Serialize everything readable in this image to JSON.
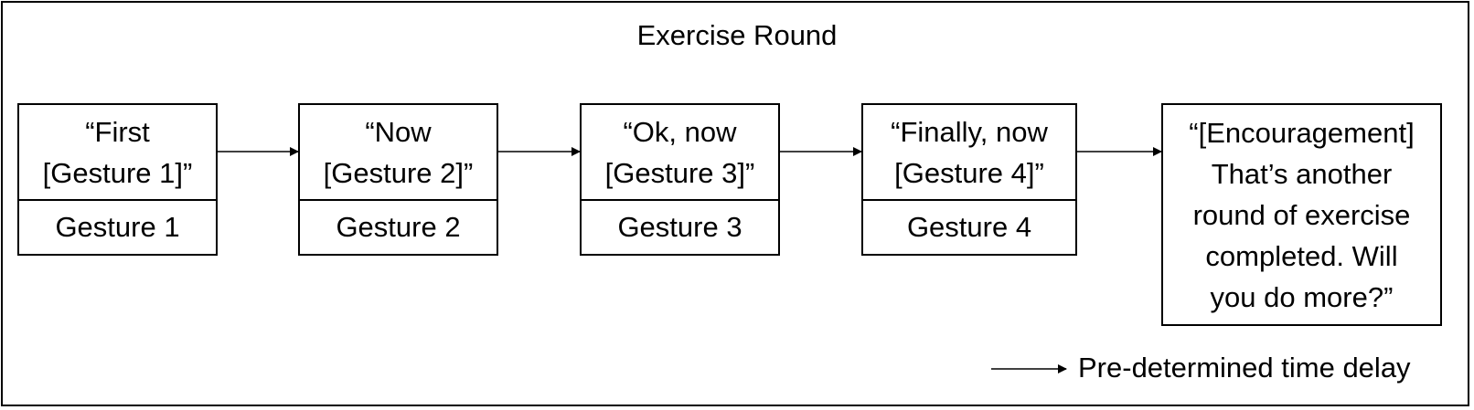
{
  "diagram": {
    "title": "Exercise Round",
    "steps": [
      {
        "speech": [
          "“First",
          "[Gesture 1]”"
        ],
        "gesture": "Gesture 1"
      },
      {
        "speech": [
          "“Now",
          "[Gesture 2]”"
        ],
        "gesture": "Gesture 2"
      },
      {
        "speech": [
          "“Ok, now",
          "[Gesture 3]”"
        ],
        "gesture": "Gesture 3"
      },
      {
        "speech": [
          "“Finally, now",
          "[Gesture 4]”"
        ],
        "gesture": "Gesture 4"
      }
    ],
    "final": {
      "lines": [
        "“[Encouragement]",
        "That’s another",
        "round of exercise",
        "completed. Will",
        "you do more?”"
      ]
    },
    "legend": {
      "label": "Pre-determined time delay"
    }
  }
}
